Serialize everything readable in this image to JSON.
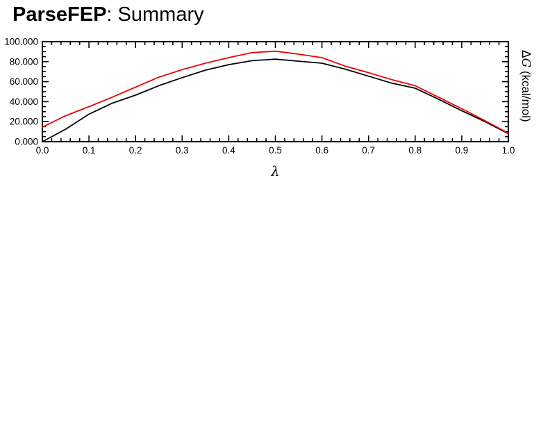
{
  "title": {
    "bold": "ParseFEP",
    "rest": ": Summary"
  },
  "chart_data": {
    "type": "line",
    "title": "ParseFEP: Summary",
    "xlabel": "λ",
    "ylabel_right": "ΔG (kcal/mol)",
    "ylabel_right_parts": {
      "prefix": "Δ",
      "italic": "G",
      "suffix": " (kcal/mol)"
    },
    "xlim": [
      0.0,
      1.0
    ],
    "ylim": [
      0.0,
      100.0
    ],
    "grid": false,
    "legend": "none",
    "background": "#ffffff",
    "frame_color": "#000000",
    "x": [
      0.0,
      0.05,
      0.1,
      0.15,
      0.2,
      0.25,
      0.3,
      0.35,
      0.4,
      0.45,
      0.5,
      0.55,
      0.6,
      0.65,
      0.7,
      0.75,
      0.8,
      0.85,
      0.9,
      0.95,
      1.0
    ],
    "series": [
      {
        "name": "series-black",
        "color": "#000000",
        "values": [
          0.0,
          12.5,
          27.5,
          38.5,
          46.5,
          56.0,
          64.0,
          71.5,
          77.0,
          81.0,
          82.5,
          80.5,
          78.5,
          72.5,
          65.5,
          58.5,
          53.5,
          42.5,
          31.0,
          20.0,
          8.0
        ]
      },
      {
        "name": "series-red",
        "color": "#ee0000",
        "values": [
          14.5,
          26.0,
          35.0,
          44.5,
          54.5,
          64.5,
          72.0,
          78.5,
          84.0,
          89.0,
          90.5,
          87.5,
          84.0,
          75.5,
          69.0,
          62.0,
          56.0,
          44.5,
          33.0,
          21.0,
          8.5
        ]
      }
    ],
    "x_ticks": {
      "minor_step": 0.02,
      "major": [
        {
          "v": 0.0,
          "label": "0.0"
        },
        {
          "v": 0.1,
          "label": "0.1"
        },
        {
          "v": 0.2,
          "label": "0.2"
        },
        {
          "v": 0.3,
          "label": "0.3"
        },
        {
          "v": 0.4,
          "label": "0.4"
        },
        {
          "v": 0.5,
          "label": "0.5"
        },
        {
          "v": 0.6,
          "label": "0.6"
        },
        {
          "v": 0.7,
          "label": "0.7"
        },
        {
          "v": 0.8,
          "label": "0.8"
        },
        {
          "v": 0.9,
          "label": "0.9"
        },
        {
          "v": 1.0,
          "label": "1.0"
        }
      ]
    },
    "y_ticks": {
      "minor_step": 5,
      "major": [
        {
          "v": 0,
          "label": "0.000"
        },
        {
          "v": 20,
          "label": "20.000"
        },
        {
          "v": 40,
          "label": "40.000"
        },
        {
          "v": 60,
          "label": "60.000"
        },
        {
          "v": 80,
          "label": "80.000"
        },
        {
          "v": 100,
          "label": "100.000"
        }
      ]
    }
  }
}
